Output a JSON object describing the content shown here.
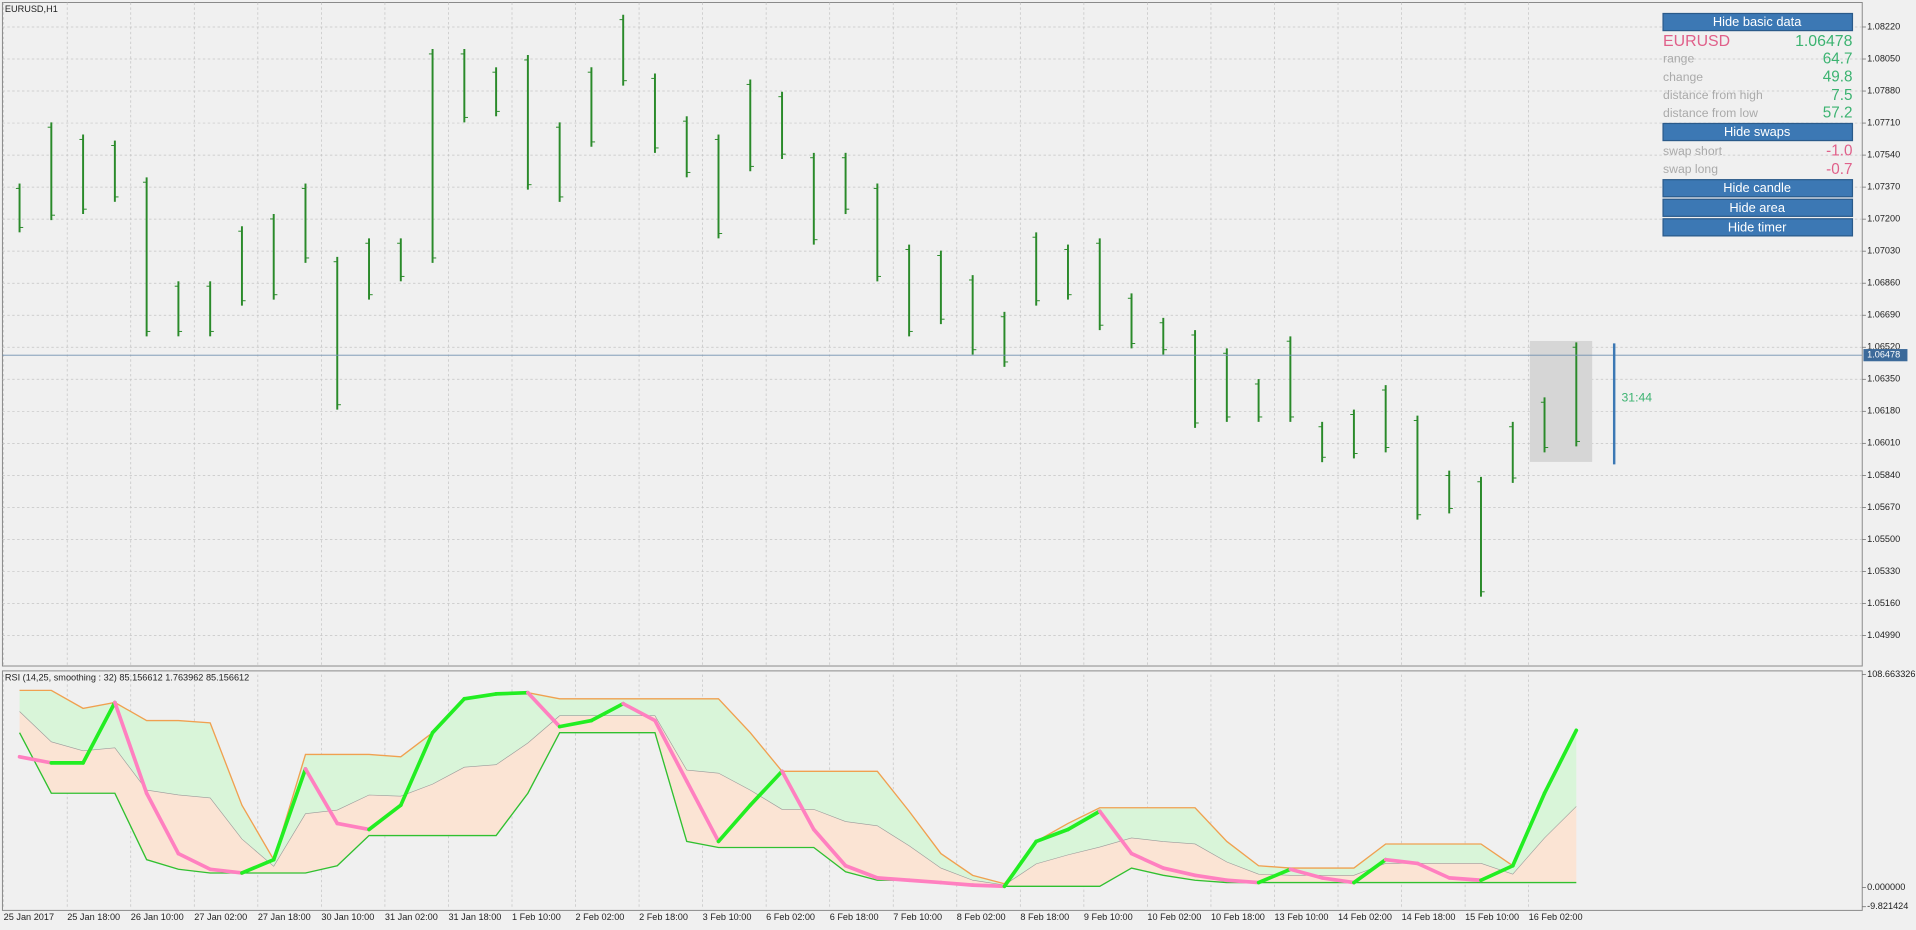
{
  "chart_data": [
    {
      "type": "ohlc",
      "title": "EURUSD,H1",
      "categories": [
        "25 Jan 2017",
        null,
        "25 Jan 18:00",
        null,
        "26 Jan 10:00",
        null,
        "27 Jan 02:00",
        null,
        "27 Jan 18:00",
        null,
        "30 Jan 10:00",
        null,
        "31 Jan 02:00",
        null,
        "31 Jan 18:00",
        null,
        "1 Feb 10:00",
        null,
        "2 Feb 02:00",
        null,
        "2 Feb 18:00",
        null,
        "3 Feb 10:00",
        null,
        "6 Feb 02:00",
        null,
        "6 Feb 18:00",
        null,
        "7 Feb 10:00",
        null,
        "8 Feb 02:00",
        null,
        "8 Feb 18:00",
        null,
        "9 Feb 10:00",
        null,
        "10 Feb 02:00",
        null,
        "10 Feb 18:00",
        null,
        "13 Feb 10:00",
        null,
        "14 Feb 02:00",
        null,
        "14 Feb 18:00",
        null,
        "15 Feb 10:00",
        null,
        "16 Feb 02:00",
        null
      ],
      "high": [
        1.07389,
        1.07714,
        1.07649,
        1.07617,
        1.07422,
        1.0687,
        1.0687,
        1.07162,
        1.07227,
        1.07389,
        1.07,
        1.07098,
        1.07098,
        1.08103,
        1.08103,
        1.08006,
        1.08071,
        1.07714,
        1.08006,
        1.08285,
        1.07973,
        1.07746,
        1.07649,
        1.07941,
        1.07876,
        1.07552,
        1.07552,
        1.07389,
        1.07065,
        1.07033,
        1.06903,
        1.06708,
        1.0713,
        1.07065,
        1.07098,
        1.06806,
        1.06676,
        1.06611,
        1.06514,
        1.06351,
        1.06578,
        1.06124,
        1.06189,
        1.06319,
        1.06157,
        1.05865,
        1.05832,
        1.06124,
        1.06254,
        1.06546
      ],
      "low": [
        1.0713,
        1.07195,
        1.07227,
        1.07292,
        1.06578,
        1.06578,
        1.06578,
        1.06741,
        1.06773,
        1.06968,
        1.06189,
        1.06773,
        1.0687,
        1.06968,
        1.07714,
        1.07746,
        1.07357,
        1.07292,
        1.07584,
        1.07909,
        1.07552,
        1.07422,
        1.07098,
        1.07454,
        1.07519,
        1.07065,
        1.07227,
        1.0687,
        1.06578,
        1.06643,
        1.06481,
        1.06416,
        1.06741,
        1.06773,
        1.06611,
        1.06514,
        1.06481,
        1.06092,
        1.06124,
        1.06124,
        1.06124,
        1.0591,
        1.0593,
        1.05962,
        1.05605,
        1.05638,
        1.05196,
        1.058,
        1.05962,
        1.05994
      ],
      "color": "#2a8a2a",
      "ylim": [
        1.04828,
        1.0835
      ],
      "yticks": [
        {
          "value": 1.0822,
          "label": "1.08220"
        },
        {
          "value": 1.0805,
          "label": "1.08050"
        },
        {
          "value": 1.0788,
          "label": "1.07880"
        },
        {
          "value": 1.0771,
          "label": "1.07710"
        },
        {
          "value": 1.0754,
          "label": "1.07540"
        },
        {
          "value": 1.0737,
          "label": "1.07370"
        },
        {
          "value": 1.072,
          "label": "1.07200"
        },
        {
          "value": 1.0703,
          "label": "1.07030"
        },
        {
          "value": 1.0686,
          "label": "1.06860"
        },
        {
          "value": 1.0669,
          "label": "1.06690"
        },
        {
          "value": 1.0652,
          "label": "1.06520"
        },
        {
          "value": 1.0635,
          "label": "1.06350"
        },
        {
          "value": 1.0618,
          "label": "1.06180"
        },
        {
          "value": 1.0601,
          "label": "1.06010"
        },
        {
          "value": 1.0584,
          "label": "1.05840"
        },
        {
          "value": 1.0567,
          "label": "1.05670"
        },
        {
          "value": 1.055,
          "label": "1.05500"
        },
        {
          "value": 1.0533,
          "label": "1.05330"
        },
        {
          "value": 1.0516,
          "label": "1.05160"
        },
        {
          "value": 1.0499,
          "label": "1.04990"
        }
      ],
      "grid": true,
      "current_price": 1.06478,
      "timer": "31:44"
    },
    {
      "type": "line",
      "title": "RSI (14,25, smoothing : 32) 85.156612 1.763962 85.156612",
      "values": [
        66.7,
        63.6,
        63.6,
        94.4,
        48.1,
        17.3,
        9.3,
        7.4,
        14.2,
        60.5,
        32.7,
        29.6,
        42.0,
        79.0,
        96.3,
        98.8,
        99.4,
        82.1,
        85.2,
        93.8,
        85.2,
        54.3,
        23.5,
        42.0,
        59.3,
        29.6,
        11.1,
        4.9,
        3.7,
        2.5,
        1.2,
        0.6,
        23.5,
        29.6,
        38.9,
        17.3,
        9.9,
        6.2,
        3.7,
        2.5,
        9.3,
        4.9,
        2.5,
        14.2,
        12.3,
        4.9,
        3.7,
        11.1,
        48.1,
        80.2
      ],
      "upper": [
        100.6,
        100.6,
        91.4,
        94.4,
        85.2,
        85.2,
        84.0,
        42.0,
        14.2,
        67.9,
        67.9,
        67.9,
        66.7,
        79.0,
        96.3,
        98.8,
        99.4,
        96.3,
        96.3,
        96.3,
        96.3,
        96.3,
        96.3,
        79.0,
        59.3,
        59.3,
        59.3,
        59.3,
        38.9,
        17.3,
        6.2,
        1.9,
        23.5,
        32.7,
        40.7,
        40.7,
        40.7,
        40.7,
        23.5,
        11.1,
        9.9,
        9.9,
        9.9,
        22.2,
        22.2,
        22.2,
        22.2,
        11.1,
        48.1,
        80.2
      ],
      "lower": [
        79.0,
        48.1,
        48.1,
        48.1,
        14.2,
        9.3,
        7.4,
        7.4,
        7.4,
        7.4,
        11.1,
        26.5,
        26.5,
        26.5,
        26.5,
        26.5,
        48.1,
        79.0,
        79.0,
        79.0,
        79.0,
        23.5,
        20.4,
        20.4,
        20.4,
        20.4,
        8.0,
        3.7,
        3.7,
        2.5,
        1.2,
        0.6,
        0.6,
        0.6,
        0.6,
        9.9,
        6.2,
        3.7,
        2.5,
        2.5,
        2.5,
        2.5,
        2.5,
        2.5,
        2.5,
        2.5,
        2.5,
        2.5,
        2.5,
        2.5
      ],
      "rising_color": "#22ee22",
      "falling_color": "#ff80c0",
      "upper_color": "#f0a050",
      "lower_color": "#30c030",
      "upper_fill": "#d9f5d9",
      "lower_fill": "#fbe4d4",
      "ylim": [
        -9.821424,
        108.663326
      ],
      "yticks": [
        108.663326,
        {
          "value": 0,
          "label": "0.000000"
        },
        -9.821424
      ],
      "grid": false
    }
  ],
  "info_panel": {
    "basic_button": "Hide basic data",
    "symbol": "EURUSD",
    "rows": [
      [
        "range",
        "64.7"
      ],
      [
        "change",
        "49.8"
      ],
      [
        "distance from high",
        "7.5"
      ],
      [
        "distance from low",
        "57.2"
      ]
    ],
    "swaps_button": "Hide swaps",
    "swap_rows": [
      [
        "swap short",
        "-1.0"
      ],
      [
        "swap long",
        "-0.7"
      ]
    ],
    "buttons": [
      "Hide candle",
      "Hide area",
      "Hide timer"
    ]
  }
}
